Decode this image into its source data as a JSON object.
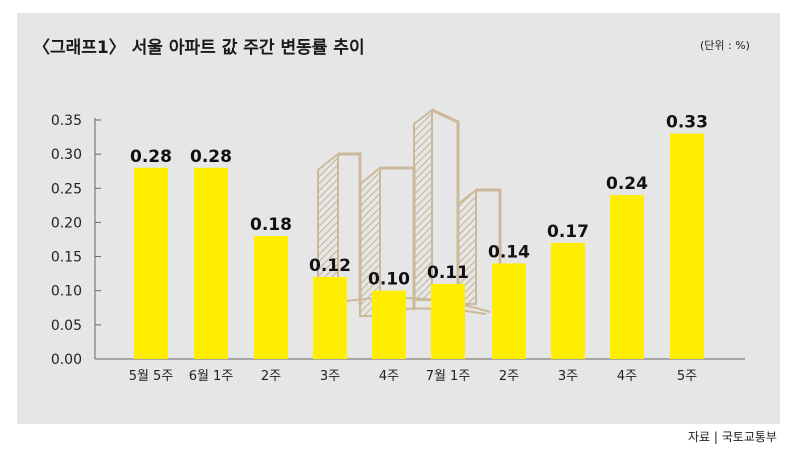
{
  "header": {
    "title": "〈그래프1〉 서울 아파트 값 주간 변동률 추이",
    "unit": "(단위 : %)"
  },
  "footer": {
    "source": "자료 | 국토교통부"
  },
  "colors": {
    "bar": "#ffee00",
    "panel": "#e6e6e6",
    "illustration": "#c9b593"
  },
  "chart_data": {
    "type": "bar",
    "categories": [
      "5월 5주",
      "6월 1주",
      "2주",
      "3주",
      "4주",
      "7월 1주",
      "2주",
      "3주",
      "4주",
      "5주"
    ],
    "values": [
      0.28,
      0.28,
      0.18,
      0.12,
      0.1,
      0.11,
      0.14,
      0.17,
      0.24,
      0.33
    ],
    "value_labels": [
      "0.28",
      "0.28",
      "0.18",
      "0.12",
      "0.10",
      "0.11",
      "0.14",
      "0.17",
      "0.24",
      "0.33"
    ],
    "ylim": [
      0,
      0.35
    ],
    "yticks": [
      "0.00",
      "0.05",
      "0.10",
      "0.15",
      "0.20",
      "0.25",
      "0.30",
      "0.35"
    ],
    "grid": false,
    "legend": "none"
  }
}
